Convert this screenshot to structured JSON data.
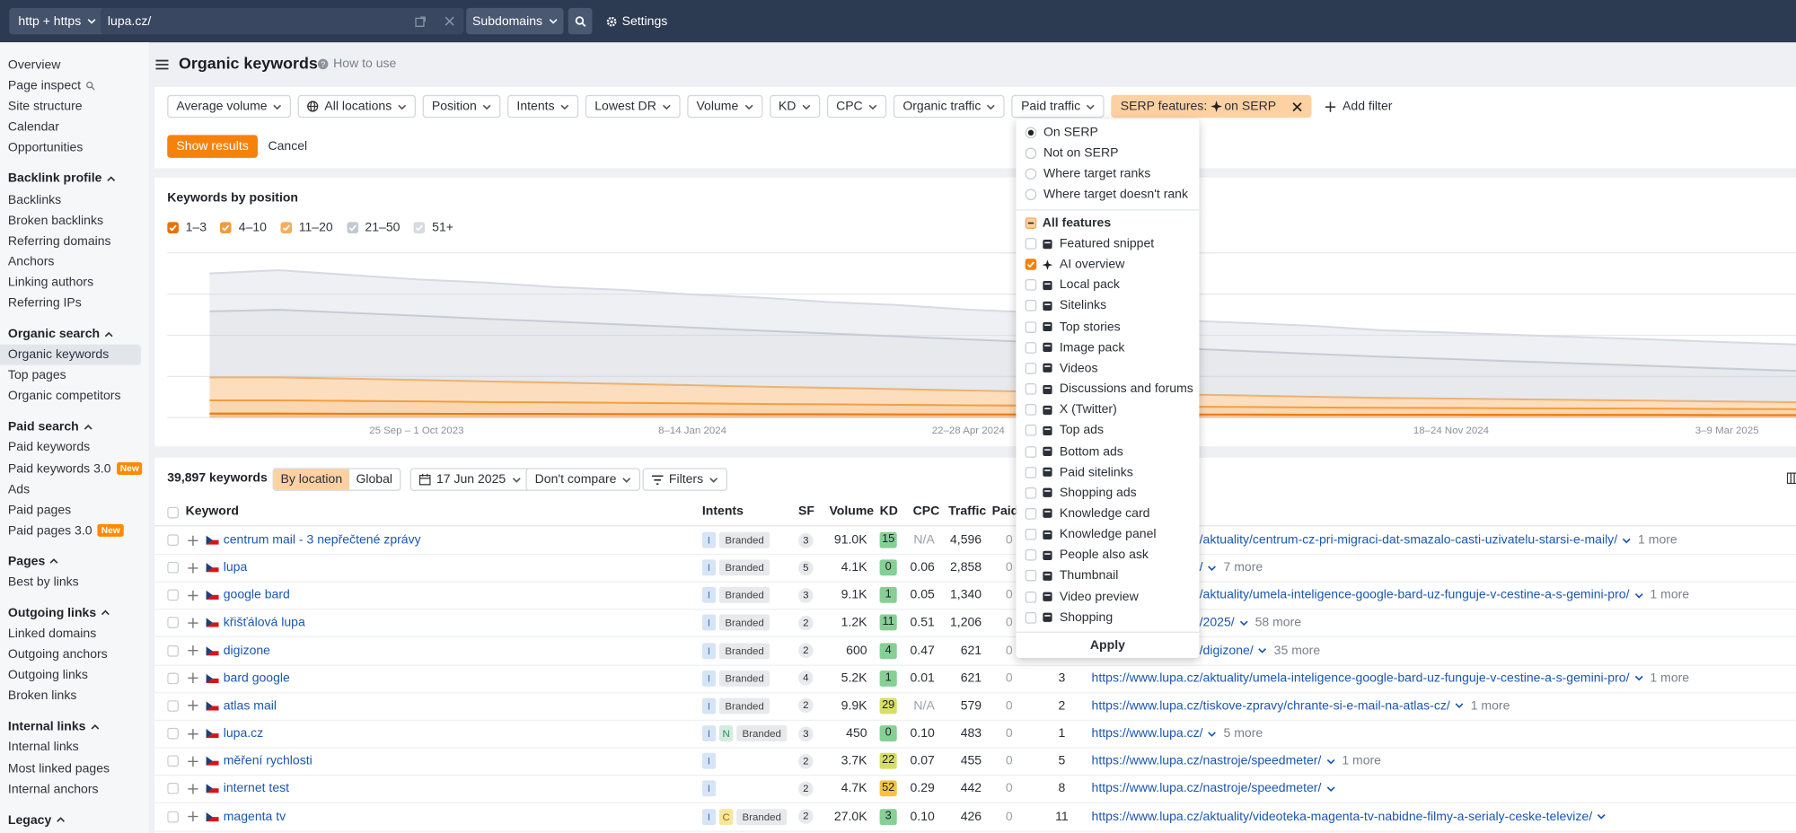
{
  "topbar": {
    "protocol": "http + https",
    "url": "lupa.cz/",
    "mode": "Subdomains",
    "settings": "Settings"
  },
  "sidebar": {
    "top_items": [
      "Overview",
      "Page inspect",
      "Site structure",
      "Calendar",
      "Opportunities"
    ],
    "sections": [
      {
        "title": "Backlink profile",
        "items": [
          {
            "label": "Backlinks"
          },
          {
            "label": "Broken backlinks"
          },
          {
            "label": "Referring domains"
          },
          {
            "label": "Anchors"
          },
          {
            "label": "Linking authors"
          },
          {
            "label": "Referring IPs"
          }
        ]
      },
      {
        "title": "Organic search",
        "items": [
          {
            "label": "Organic keywords",
            "active": true
          },
          {
            "label": "Top pages"
          },
          {
            "label": "Organic competitors"
          }
        ]
      },
      {
        "title": "Paid search",
        "items": [
          {
            "label": "Paid keywords"
          },
          {
            "label": "Paid keywords 3.0",
            "badge": "New"
          },
          {
            "label": "Ads"
          },
          {
            "label": "Paid pages"
          },
          {
            "label": "Paid pages 3.0",
            "badge": "New"
          }
        ]
      },
      {
        "title": "Pages",
        "items": [
          {
            "label": "Best by links"
          }
        ]
      },
      {
        "title": "Outgoing links",
        "items": [
          {
            "label": "Linked domains"
          },
          {
            "label": "Outgoing anchors"
          },
          {
            "label": "Outgoing links"
          },
          {
            "label": "Broken links"
          }
        ]
      },
      {
        "title": "Internal links",
        "items": [
          {
            "label": "Internal links"
          },
          {
            "label": "Most linked pages"
          },
          {
            "label": "Internal anchors"
          }
        ]
      },
      {
        "title": "Legacy",
        "items": []
      }
    ]
  },
  "header": {
    "title": "Organic keywords",
    "help": "How to use"
  },
  "filters": {
    "items": [
      "Average volume",
      "All locations",
      "Position",
      "Intents",
      "Lowest DR",
      "Volume",
      "KD",
      "CPC",
      "Organic traffic",
      "Paid traffic"
    ],
    "active": {
      "label": "SERP features:",
      "value": "on SERP"
    },
    "add": "Add filter",
    "show": "Show results",
    "cancel": "Cancel"
  },
  "chart_data": {
    "type": "area",
    "stacked": true,
    "title": "Keywords by position",
    "categories": [
      null,
      null,
      null,
      "25 Sep – 1 Oct 2023",
      null,
      null,
      null,
      "8–14 Jan 2024",
      null,
      null,
      null,
      "22–28 Apr 2024",
      null,
      null,
      null,
      null,
      null,
      null,
      "18–24 Nov 2024",
      null,
      null,
      null,
      "3–9 Mar 2025",
      null
    ],
    "ylim": [
      0,
      100
    ],
    "series": [
      {
        "name": "1–3",
        "color": "#e8710a",
        "values": [
          2.5,
          2.5,
          2.4,
          2.4,
          2.3,
          2.3,
          2.2,
          2.2,
          2.1,
          2.1,
          2,
          2,
          2,
          2,
          1.9,
          1.9,
          1.8,
          1.8,
          1.8,
          1.7,
          1.7,
          1.7,
          1.6,
          1.6
        ]
      },
      {
        "name": "4–10",
        "color": "#f39b3a",
        "values": [
          8,
          8,
          7.8,
          7.5,
          7.2,
          7,
          6.8,
          6.5,
          6.2,
          6,
          5.8,
          5.5,
          5.3,
          5,
          4.8,
          4.6,
          4.4,
          4.2,
          4.1,
          4,
          3.9,
          3.8,
          3.7,
          3.6
        ]
      },
      {
        "name": "11–20",
        "color": "#f7ad5c",
        "values": [
          14,
          14,
          13.5,
          13,
          12.5,
          12,
          11.5,
          11,
          10.5,
          10,
          9.5,
          9,
          8.5,
          8,
          7.5,
          7,
          6.5,
          6,
          5.7,
          5.4,
          5.1,
          4.8,
          4.5,
          4.2
        ]
      },
      {
        "name": "21–50",
        "color": "#c3c9d2",
        "values": [
          40,
          41,
          40,
          39,
          38,
          37,
          36,
          35,
          34,
          33,
          32,
          31,
          30,
          29,
          28,
          27,
          26,
          25,
          24,
          23,
          22,
          21,
          20,
          19
        ]
      },
      {
        "name": "51+",
        "color": "#d6dae1",
        "values": [
          23,
          24,
          23,
          22,
          22,
          21,
          21,
          20,
          20,
          19,
          19,
          18,
          18,
          18,
          17,
          17,
          17,
          16,
          16,
          16,
          16,
          16,
          16,
          16
        ]
      }
    ]
  },
  "table": {
    "count": "39,897 keywords",
    "toggles": [
      "By location",
      "Global"
    ],
    "date": "17 Jun 2025",
    "compare": "Don't compare",
    "filters": "Filters",
    "columns": [
      "Keyword",
      "Intents",
      "SF",
      "Volume",
      "KD",
      "CPC",
      "Traffic",
      "Paid"
    ],
    "rows": [
      {
        "keyword": "centrum mail - 3 nepřečtené zprávy",
        "intents": [
          "I"
        ],
        "branded": "Branded",
        "sf": 3,
        "volume": "91.0K",
        "kd": 15,
        "cpc": "N/A",
        "traffic": "4,596",
        "paid": 0,
        "position": null,
        "url": "https://www.lupa.cz/aktuality/centrum-cz-pri-migraci-dat-smazalo-casti-uzivatelu-starsi-e-maily/",
        "more": "1 more"
      },
      {
        "keyword": "lupa",
        "intents": [
          "I"
        ],
        "branded": "Branded",
        "sf": 5,
        "volume": "4.1K",
        "kd": 0,
        "cpc": "0.06",
        "traffic": "2,858",
        "paid": 0,
        "position": null,
        "url": "https://www.lupa.cz/",
        "more": "7 more"
      },
      {
        "keyword": "google bard",
        "intents": [
          "I"
        ],
        "branded": "Branded",
        "sf": 3,
        "volume": "9.1K",
        "kd": 1,
        "cpc": "0.05",
        "traffic": "1,340",
        "paid": 0,
        "position": null,
        "url": "https://www.lupa.cz/aktuality/umela-inteligence-google-bard-uz-funguje-v-cestine-a-s-gemini-pro/",
        "more": "1 more"
      },
      {
        "keyword": "křišťálová lupa",
        "intents": [
          "I"
        ],
        "branded": "Branded",
        "sf": 2,
        "volume": "1.2K",
        "kd": 11,
        "cpc": "0.51",
        "traffic": "1,206",
        "paid": 0,
        "position": null,
        "url": "https://www.lupa.cz/2025/",
        "more": "58 more"
      },
      {
        "keyword": "digizone",
        "intents": [
          "I"
        ],
        "branded": "Branded",
        "sf": 2,
        "volume": "600",
        "kd": 4,
        "cpc": "0.47",
        "traffic": "621",
        "paid": 0,
        "position": null,
        "url": "https://www.lupa.cz/digizone/",
        "more": "35 more"
      },
      {
        "keyword": "bard google",
        "intents": [
          "I"
        ],
        "branded": "Branded",
        "sf": 4,
        "volume": "5.2K",
        "kd": 1,
        "cpc": "0.01",
        "traffic": "621",
        "paid": 0,
        "position": 3,
        "url": "https://www.lupa.cz/aktuality/umela-inteligence-google-bard-uz-funguje-v-cestine-a-s-gemini-pro/",
        "more": "1 more"
      },
      {
        "keyword": "atlas mail",
        "intents": [
          "I"
        ],
        "branded": "Branded",
        "sf": 2,
        "volume": "9.9K",
        "kd": 29,
        "cpc": "N/A",
        "traffic": "579",
        "paid": 0,
        "position": 2,
        "url": "https://www.lupa.cz/tiskove-zpravy/chrante-si-e-mail-na-atlas-cz/",
        "more": "1 more"
      },
      {
        "keyword": "lupa.cz",
        "intents": [
          "I",
          "N"
        ],
        "branded": "Branded",
        "sf": 3,
        "volume": "450",
        "kd": 0,
        "cpc": "0.10",
        "traffic": "483",
        "paid": 0,
        "position": 1,
        "url": "https://www.lupa.cz/",
        "more": "5 more"
      },
      {
        "keyword": "měření rychlosti",
        "intents": [
          "I"
        ],
        "sf": 2,
        "volume": "3.7K",
        "kd": 22,
        "cpc": "0.07",
        "traffic": "455",
        "paid": 0,
        "position": 5,
        "url": "https://www.lupa.cz/nastroje/speedmeter/",
        "more": "1 more"
      },
      {
        "keyword": "internet test",
        "intents": [
          "I"
        ],
        "sf": 2,
        "volume": "4.7K",
        "kd": 52,
        "cpc": "0.29",
        "traffic": "442",
        "paid": 0,
        "position": 8,
        "url": "https://www.lupa.cz/nastroje/speedmeter/"
      },
      {
        "keyword": "magenta tv",
        "intents": [
          "I",
          "C"
        ],
        "branded": "Branded",
        "sf": 2,
        "volume": "27.0K",
        "kd": 3,
        "cpc": "0.10",
        "traffic": "426",
        "paid": 0,
        "position": 11,
        "url": "https://www.lupa.cz/aktuality/videoteka-magenta-tv-nabidne-filmy-a-serialy-ceske-televize/"
      }
    ]
  },
  "dropdown": {
    "options": [
      "On SERP",
      "Not on SERP",
      "Where target ranks",
      "Where target doesn't rank"
    ],
    "selected": 0,
    "all_features": "All features",
    "features": [
      {
        "label": "Featured snippet"
      },
      {
        "label": "AI overview",
        "checked": true
      },
      {
        "label": "Local pack"
      },
      {
        "label": "Sitelinks"
      },
      {
        "label": "Top stories"
      },
      {
        "label": "Image pack"
      },
      {
        "label": "Videos"
      },
      {
        "label": "Discussions and forums"
      },
      {
        "label": "X (Twitter)"
      },
      {
        "label": "Top ads"
      },
      {
        "label": "Bottom ads"
      },
      {
        "label": "Paid sitelinks"
      },
      {
        "label": "Shopping ads"
      },
      {
        "label": "Knowledge card"
      },
      {
        "label": "Knowledge panel"
      },
      {
        "label": "People also ask"
      },
      {
        "label": "Thumbnail"
      },
      {
        "label": "Video preview"
      },
      {
        "label": "Shopping"
      }
    ],
    "apply": "Apply"
  }
}
